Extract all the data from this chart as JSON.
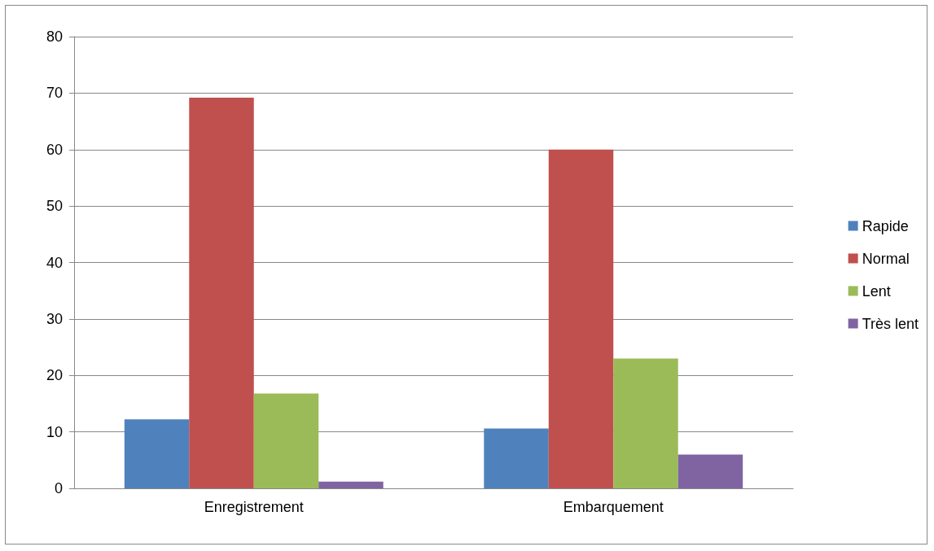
{
  "chart_data": {
    "type": "bar",
    "categories": [
      "Enregistrement",
      "Embarquement"
    ],
    "series": [
      {
        "name": "Rapide",
        "color": "#4f81bd",
        "values": [
          12.2,
          10.6
        ]
      },
      {
        "name": "Normal",
        "color": "#c0504d",
        "values": [
          69.2,
          60
        ]
      },
      {
        "name": "Lent",
        "color": "#9bbb59",
        "values": [
          16.8,
          23
        ]
      },
      {
        "name": "Très lent",
        "color": "#8064a2",
        "values": [
          1.2,
          6
        ]
      }
    ],
    "ylim": [
      0,
      80
    ],
    "yticks": [
      0,
      10,
      20,
      30,
      40,
      50,
      60,
      70,
      80
    ],
    "grid": "y",
    "legend": "right"
  }
}
